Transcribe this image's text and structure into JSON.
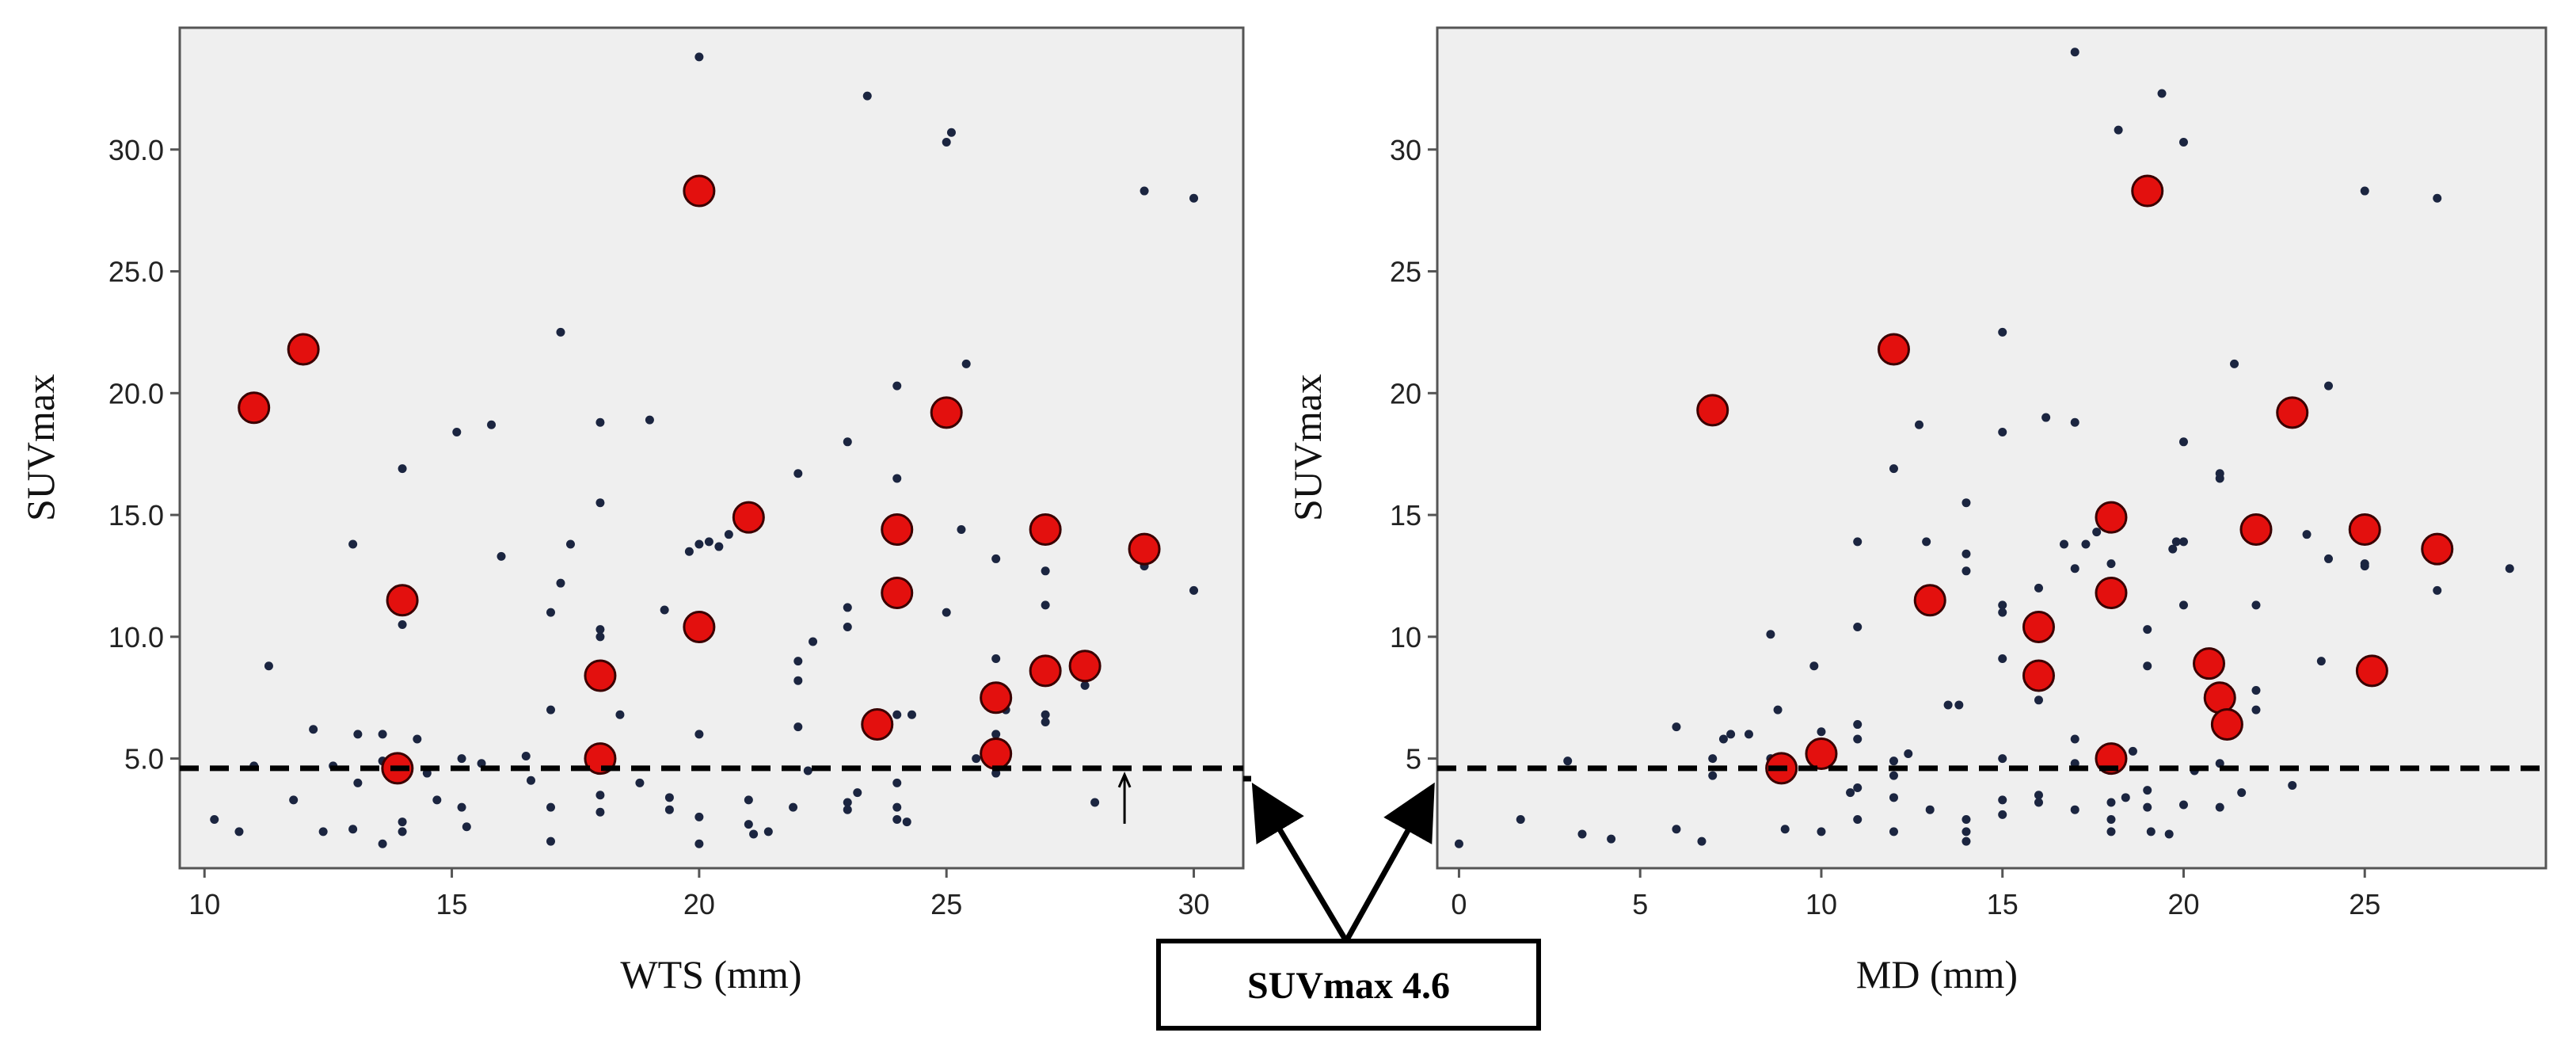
{
  "colors": {
    "plot_background": "#efefef",
    "small_point": "#1b2540",
    "highlight_point": "#e3100e",
    "highlight_edge": "#3a0000",
    "threshold_line": "#000000"
  },
  "chart_data": [
    {
      "type": "scatter",
      "xlabel": "WTS (mm)",
      "ylabel": "SUVmax",
      "xlim": [
        9.5,
        31.0
      ],
      "ylim": [
        0.5,
        35.0
      ],
      "xticks": [
        "10",
        "15",
        "20",
        "25",
        "30"
      ],
      "yticks": [
        "5.0",
        "10.0",
        "15.0",
        "20.0",
        "25.0",
        "30.0"
      ],
      "threshold": 4.6,
      "arrow_marker_x": 28.6,
      "series": [
        {
          "name": "small points",
          "points": [
            [
              10.2,
              2.5
            ],
            [
              10.7,
              2.0
            ],
            [
              11.0,
              4.7
            ],
            [
              11.3,
              8.8
            ],
            [
              11.8,
              3.3
            ],
            [
              12.2,
              6.2
            ],
            [
              12.4,
              2.0
            ],
            [
              12.6,
              4.7
            ],
            [
              13.0,
              2.1
            ],
            [
              13.0,
              13.8
            ],
            [
              13.1,
              6.0
            ],
            [
              13.1,
              4.0
            ],
            [
              13.6,
              4.9
            ],
            [
              13.6,
              6.0
            ],
            [
              13.6,
              1.5
            ],
            [
              14.0,
              16.9
            ],
            [
              14.0,
              10.5
            ],
            [
              14.0,
              2.4
            ],
            [
              14.0,
              2.0
            ],
            [
              14.3,
              5.8
            ],
            [
              14.5,
              4.4
            ],
            [
              14.7,
              3.3
            ],
            [
              15.1,
              18.4
            ],
            [
              15.2,
              5.0
            ],
            [
              15.2,
              3.0
            ],
            [
              15.3,
              2.2
            ],
            [
              15.6,
              4.8
            ],
            [
              15.8,
              18.7
            ],
            [
              16.0,
              13.3
            ],
            [
              16.5,
              5.1
            ],
            [
              16.6,
              4.1
            ],
            [
              17.0,
              1.6
            ],
            [
              17.0,
              3.0
            ],
            [
              17.0,
              7.0
            ],
            [
              17.0,
              11.0
            ],
            [
              17.2,
              12.2
            ],
            [
              17.2,
              22.5
            ],
            [
              17.4,
              13.8
            ],
            [
              18.0,
              18.8
            ],
            [
              18.0,
              15.5
            ],
            [
              18.0,
              10.3
            ],
            [
              18.0,
              10.0
            ],
            [
              18.0,
              3.5
            ],
            [
              18.0,
              2.8
            ],
            [
              18.2,
              4.8
            ],
            [
              18.4,
              6.8
            ],
            [
              18.8,
              4.0
            ],
            [
              19.0,
              18.9
            ],
            [
              19.3,
              11.1
            ],
            [
              19.4,
              3.4
            ],
            [
              19.4,
              2.9
            ],
            [
              19.8,
              13.5
            ],
            [
              20.0,
              33.8
            ],
            [
              20.0,
              13.8
            ],
            [
              20.0,
              6.0
            ],
            [
              20.0,
              2.6
            ],
            [
              20.0,
              1.5
            ],
            [
              20.2,
              13.9
            ],
            [
              20.4,
              13.7
            ],
            [
              20.6,
              14.2
            ],
            [
              21.0,
              3.3
            ],
            [
              21.0,
              2.3
            ],
            [
              21.1,
              1.9
            ],
            [
              21.4,
              2.0
            ],
            [
              21.9,
              3.0
            ],
            [
              22.0,
              16.7
            ],
            [
              22.0,
              9.0
            ],
            [
              22.0,
              8.2
            ],
            [
              22.0,
              6.3
            ],
            [
              22.2,
              4.5
            ],
            [
              22.3,
              9.8
            ],
            [
              23.0,
              18.0
            ],
            [
              23.0,
              11.2
            ],
            [
              23.0,
              10.4
            ],
            [
              23.0,
              3.2
            ],
            [
              23.0,
              2.9
            ],
            [
              23.2,
              3.6
            ],
            [
              23.4,
              32.2
            ],
            [
              24.0,
              20.3
            ],
            [
              24.0,
              16.5
            ],
            [
              24.0,
              12.0
            ],
            [
              24.0,
              6.8
            ],
            [
              24.0,
              4.0
            ],
            [
              24.0,
              3.0
            ],
            [
              24.0,
              2.5
            ],
            [
              24.2,
              2.4
            ],
            [
              24.3,
              6.8
            ],
            [
              25.0,
              30.3
            ],
            [
              25.0,
              11.0
            ],
            [
              25.1,
              30.7
            ],
            [
              25.3,
              14.4
            ],
            [
              25.4,
              21.2
            ],
            [
              25.6,
              5.0
            ],
            [
              26.0,
              13.2
            ],
            [
              26.0,
              9.1
            ],
            [
              26.0,
              5.6
            ],
            [
              26.0,
              4.4
            ],
            [
              26.0,
              6.0
            ],
            [
              26.2,
              7.0
            ],
            [
              27.0,
              12.7
            ],
            [
              27.0,
              11.3
            ],
            [
              27.0,
              6.8
            ],
            [
              27.0,
              6.5
            ],
            [
              27.8,
              8.0
            ],
            [
              28.0,
              3.2
            ],
            [
              29.0,
              28.3
            ],
            [
              29.0,
              13.1
            ],
            [
              29.0,
              12.9
            ],
            [
              30.0,
              28.0
            ],
            [
              30.0,
              11.9
            ]
          ]
        },
        {
          "name": "highlighted points",
          "points": [
            [
              11.0,
              19.4
            ],
            [
              12.0,
              21.8
            ],
            [
              14.0,
              11.5
            ],
            [
              13.9,
              4.6
            ],
            [
              18.0,
              8.4
            ],
            [
              18.0,
              5.0
            ],
            [
              20.0,
              28.3
            ],
            [
              20.0,
              10.4
            ],
            [
              21.0,
              14.9
            ],
            [
              23.6,
              6.4
            ],
            [
              24.0,
              14.4
            ],
            [
              24.0,
              11.8
            ],
            [
              25.0,
              19.2
            ],
            [
              26.0,
              7.5
            ],
            [
              26.0,
              5.2
            ],
            [
              27.0,
              14.4
            ],
            [
              27.0,
              8.6
            ],
            [
              27.8,
              8.8
            ],
            [
              29.0,
              13.6
            ]
          ]
        }
      ]
    },
    {
      "type": "scatter",
      "xlabel": "MD (mm)",
      "ylabel": "SUVmax",
      "xlim": [
        -0.6,
        30.0
      ],
      "ylim": [
        0.5,
        35.0
      ],
      "xticks": [
        "0",
        "5",
        "10",
        "15",
        "20",
        "25"
      ],
      "yticks": [
        "5",
        "10",
        "15",
        "20",
        "25",
        "30"
      ],
      "threshold": 4.6,
      "series": [
        {
          "name": "small points",
          "points": [
            [
              0.0,
              1.5
            ],
            [
              1.7,
              2.5
            ],
            [
              3.0,
              4.9
            ],
            [
              3.4,
              1.9
            ],
            [
              4.2,
              1.7
            ],
            [
              6.0,
              6.3
            ],
            [
              6.0,
              2.1
            ],
            [
              6.7,
              1.6
            ],
            [
              7.0,
              5.0
            ],
            [
              7.0,
              4.3
            ],
            [
              7.3,
              5.8
            ],
            [
              7.5,
              6.0
            ],
            [
              8.0,
              6.0
            ],
            [
              8.6,
              10.1
            ],
            [
              8.6,
              5.0
            ],
            [
              8.8,
              7.0
            ],
            [
              9.0,
              2.1
            ],
            [
              9.0,
              4.8
            ],
            [
              9.8,
              8.8
            ],
            [
              10.0,
              6.1
            ],
            [
              10.0,
              2.0
            ],
            [
              10.3,
              5.0
            ],
            [
              10.8,
              3.6
            ],
            [
              11.0,
              13.9
            ],
            [
              11.0,
              10.4
            ],
            [
              11.0,
              6.4
            ],
            [
              11.0,
              5.8
            ],
            [
              11.0,
              3.8
            ],
            [
              11.0,
              2.5
            ],
            [
              12.0,
              16.9
            ],
            [
              12.0,
              2.0
            ],
            [
              12.0,
              4.9
            ],
            [
              12.0,
              4.3
            ],
            [
              12.0,
              3.4
            ],
            [
              12.4,
              5.2
            ],
            [
              12.7,
              18.7
            ],
            [
              12.9,
              13.9
            ],
            [
              13.0,
              2.9
            ],
            [
              13.5,
              7.2
            ],
            [
              13.8,
              7.2
            ],
            [
              14.0,
              15.5
            ],
            [
              14.0,
              13.4
            ],
            [
              14.0,
              12.7
            ],
            [
              14.0,
              2.5
            ],
            [
              14.0,
              2.0
            ],
            [
              14.0,
              1.6
            ],
            [
              15.0,
              22.5
            ],
            [
              15.0,
              18.4
            ],
            [
              15.0,
              11.3
            ],
            [
              15.0,
              11.0
            ],
            [
              15.0,
              9.1
            ],
            [
              15.0,
              5.0
            ],
            [
              15.0,
              3.3
            ],
            [
              15.0,
              2.7
            ],
            [
              16.0,
              12.0
            ],
            [
              16.0,
              7.4
            ],
            [
              16.0,
              3.5
            ],
            [
              16.0,
              3.2
            ],
            [
              16.2,
              19.0
            ],
            [
              16.7,
              13.8
            ],
            [
              17.0,
              12.8
            ],
            [
              17.0,
              18.8
            ],
            [
              17.0,
              5.8
            ],
            [
              17.0,
              2.9
            ],
            [
              17.0,
              4.8
            ],
            [
              17.0,
              34.0
            ],
            [
              17.3,
              13.8
            ],
            [
              17.6,
              14.3
            ],
            [
              18.0,
              13.0
            ],
            [
              18.0,
              4.8
            ],
            [
              18.0,
              3.2
            ],
            [
              18.0,
              2.5
            ],
            [
              18.0,
              2.0
            ],
            [
              18.2,
              30.8
            ],
            [
              18.4,
              3.4
            ],
            [
              18.6,
              5.3
            ],
            [
              19.0,
              10.3
            ],
            [
              19.0,
              8.8
            ],
            [
              19.0,
              3.7
            ],
            [
              19.0,
              3.0
            ],
            [
              19.1,
              2.0
            ],
            [
              19.4,
              32.3
            ],
            [
              19.6,
              1.9
            ],
            [
              19.7,
              13.6
            ],
            [
              19.8,
              13.9
            ],
            [
              20.0,
              30.3
            ],
            [
              20.0,
              18.0
            ],
            [
              20.0,
              13.9
            ],
            [
              20.0,
              11.3
            ],
            [
              20.0,
              3.1
            ],
            [
              20.3,
              4.5
            ],
            [
              20.8,
              9.1
            ],
            [
              21.0,
              16.5
            ],
            [
              21.0,
              16.7
            ],
            [
              21.0,
              4.8
            ],
            [
              21.0,
              3.0
            ],
            [
              21.4,
              21.2
            ],
            [
              21.6,
              3.6
            ],
            [
              22.0,
              11.3
            ],
            [
              22.0,
              7.0
            ],
            [
              22.0,
              7.8
            ],
            [
              23.0,
              3.9
            ],
            [
              23.4,
              14.2
            ],
            [
              23.8,
              9.0
            ],
            [
              24.0,
              20.3
            ],
            [
              24.0,
              13.2
            ],
            [
              25.0,
              28.3
            ],
            [
              25.0,
              13.0
            ],
            [
              25.0,
              12.9
            ],
            [
              27.0,
              28.0
            ],
            [
              27.0,
              11.9
            ],
            [
              29.0,
              12.8
            ]
          ]
        },
        {
          "name": "highlighted points",
          "points": [
            [
              7.0,
              19.3
            ],
            [
              8.9,
              4.6
            ],
            [
              10.0,
              5.2
            ],
            [
              12.0,
              21.8
            ],
            [
              13.0,
              11.5
            ],
            [
              16.0,
              10.4
            ],
            [
              16.0,
              8.4
            ],
            [
              18.0,
              14.9
            ],
            [
              18.0,
              11.8
            ],
            [
              18.0,
              5.0
            ],
            [
              19.0,
              28.3
            ],
            [
              20.7,
              8.9
            ],
            [
              21.0,
              7.5
            ],
            [
              21.2,
              6.4
            ],
            [
              22.0,
              14.4
            ],
            [
              23.0,
              19.2
            ],
            [
              25.0,
              14.4
            ],
            [
              25.2,
              8.6
            ],
            [
              27.0,
              13.6
            ]
          ]
        }
      ]
    }
  ],
  "callout": {
    "label": "SUVmax 4.6"
  }
}
